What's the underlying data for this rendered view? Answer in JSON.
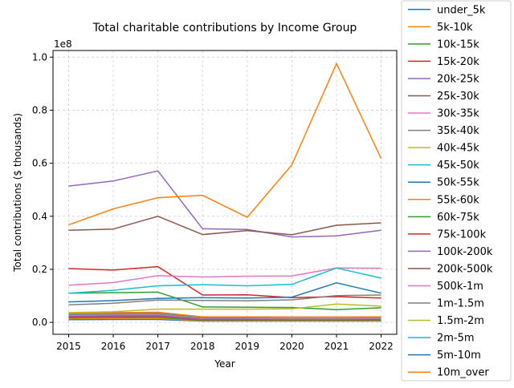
{
  "chart_data": {
    "type": "line",
    "title": "Total charitable contributions by Income Group",
    "xlabel": "Year",
    "ylabel": "Total contributions ($ thousands)",
    "offset_label": "1e8",
    "x": [
      2015,
      2016,
      2017,
      2018,
      2019,
      2020,
      2021,
      2022
    ],
    "x_tick_labels": [
      "2015",
      "2016",
      "2017",
      "2018",
      "2019",
      "2020",
      "2021",
      "2022"
    ],
    "ylim": [
      -0.045,
      1.025
    ],
    "y_scale_factor": "1e8",
    "y_ticks": [
      0.0,
      0.2,
      0.4,
      0.6,
      0.8,
      1.0
    ],
    "y_tick_labels": [
      "0.0",
      "0.2",
      "0.4",
      "0.6",
      "0.8",
      "1.0"
    ],
    "grid": true,
    "legend_position": "outside-right",
    "series": [
      {
        "name": "under_5k",
        "color": "#1f77b4",
        "values": [
          0.01,
          0.011,
          0.011,
          0.005,
          0.005,
          0.005,
          0.005,
          0.005
        ]
      },
      {
        "name": "5k-10k",
        "color": "#ff7f0e",
        "values": [
          0.014,
          0.015,
          0.015,
          0.006,
          0.006,
          0.006,
          0.006,
          0.006
        ]
      },
      {
        "name": "10k-15k",
        "color": "#2ca02c",
        "values": [
          0.018,
          0.019,
          0.019,
          0.008,
          0.008,
          0.008,
          0.008,
          0.008
        ]
      },
      {
        "name": "15k-20k",
        "color": "#d62728",
        "values": [
          0.02,
          0.021,
          0.022,
          0.01,
          0.01,
          0.01,
          0.01,
          0.01
        ]
      },
      {
        "name": "20k-25k",
        "color": "#9467bd",
        "values": [
          0.022,
          0.023,
          0.024,
          0.011,
          0.011,
          0.011,
          0.011,
          0.011
        ]
      },
      {
        "name": "25k-30k",
        "color": "#8c564b",
        "values": [
          0.025,
          0.026,
          0.026,
          0.013,
          0.013,
          0.013,
          0.013,
          0.013
        ]
      },
      {
        "name": "30k-35k",
        "color": "#e377c2",
        "values": [
          0.027,
          0.028,
          0.029,
          0.015,
          0.015,
          0.014,
          0.014,
          0.015
        ]
      },
      {
        "name": "35k-40k",
        "color": "#7f7f7f",
        "values": [
          0.03,
          0.031,
          0.032,
          0.017,
          0.017,
          0.016,
          0.016,
          0.017
        ]
      },
      {
        "name": "40k-45k",
        "color": "#bcbd22",
        "values": [
          0.033,
          0.034,
          0.035,
          0.019,
          0.019,
          0.018,
          0.018,
          0.019
        ]
      },
      {
        "name": "45k-50k",
        "color": "#17becf",
        "values": [
          0.034,
          0.035,
          0.036,
          0.02,
          0.02,
          0.019,
          0.019,
          0.02
        ]
      },
      {
        "name": "50k-55k",
        "color": "#1f77b4",
        "values": [
          0.035,
          0.036,
          0.037,
          0.02,
          0.02,
          0.02,
          0.02,
          0.021
        ]
      },
      {
        "name": "55k-60k",
        "color": "#ff7f0e",
        "values": [
          0.036,
          0.037,
          0.038,
          0.021,
          0.021,
          0.02,
          0.02,
          0.021
        ]
      },
      {
        "name": "60k-75k",
        "color": "#2ca02c",
        "values": [
          0.11,
          0.112,
          0.114,
          0.058,
          0.057,
          0.056,
          0.048,
          0.055
        ]
      },
      {
        "name": "75k-100k",
        "color": "#d62728",
        "values": [
          0.203,
          0.197,
          0.21,
          0.103,
          0.104,
          0.093,
          0.097,
          0.092
        ]
      },
      {
        "name": "100k-200k",
        "color": "#9467bd",
        "values": [
          0.514,
          0.533,
          0.571,
          0.353,
          0.35,
          0.322,
          0.326,
          0.347
        ]
      },
      {
        "name": "200k-500k",
        "color": "#8c564b",
        "values": [
          0.347,
          0.352,
          0.4,
          0.331,
          0.346,
          0.33,
          0.366,
          0.375
        ]
      },
      {
        "name": "500k-1m",
        "color": "#e377c2",
        "values": [
          0.14,
          0.15,
          0.176,
          0.171,
          0.174,
          0.175,
          0.205,
          0.204
        ]
      },
      {
        "name": "1m-1.5m",
        "color": "#7f7f7f",
        "values": [
          0.066,
          0.072,
          0.084,
          0.083,
          0.081,
          0.085,
          0.101,
          0.103
        ]
      },
      {
        "name": "1.5m-2m",
        "color": "#bcbd22",
        "values": [
          0.037,
          0.04,
          0.05,
          0.05,
          0.05,
          0.051,
          0.069,
          0.061
        ]
      },
      {
        "name": "2m-5m",
        "color": "#17becf",
        "values": [
          0.11,
          0.121,
          0.138,
          0.142,
          0.138,
          0.143,
          0.205,
          0.167
        ]
      },
      {
        "name": "5m-10m",
        "color": "#1f77b4",
        "values": [
          0.077,
          0.082,
          0.09,
          0.093,
          0.092,
          0.095,
          0.149,
          0.11
        ]
      },
      {
        "name": "10m_over",
        "color": "#ff7f0e",
        "values": [
          0.368,
          0.428,
          0.47,
          0.479,
          0.396,
          0.594,
          0.976,
          0.618
        ]
      }
    ]
  }
}
